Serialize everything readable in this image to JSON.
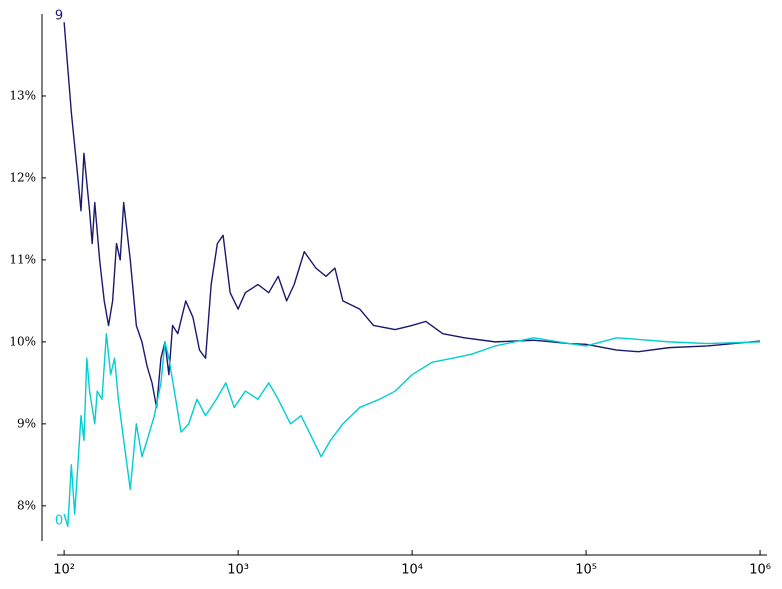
{
  "chart_data": {
    "type": "line",
    "xscale": "log",
    "xlim": [
      91,
      1096000
    ],
    "ylim": [
      7.4,
      14.0
    ],
    "xticks": [
      {
        "value": 100,
        "label": "10²"
      },
      {
        "value": 1000,
        "label": "10³"
      },
      {
        "value": 10000,
        "label": "10⁴"
      },
      {
        "value": 100000,
        "label": "10⁵"
      },
      {
        "value": 1000000,
        "label": "10⁶"
      }
    ],
    "yticks": [
      {
        "value": 8,
        "label": "8%"
      },
      {
        "value": 9,
        "label": "9%"
      },
      {
        "value": 10,
        "label": "10%"
      },
      {
        "value": 11,
        "label": "11%"
      },
      {
        "value": 12,
        "label": "12%"
      },
      {
        "value": 13,
        "label": "13%"
      }
    ],
    "grid": false,
    "series": [
      {
        "name": "9",
        "color": "#191970",
        "x": [
          100,
          110,
          120,
          125,
          130,
          140,
          145,
          150,
          160,
          170,
          180,
          190,
          200,
          210,
          220,
          240,
          260,
          280,
          300,
          320,
          340,
          360,
          380,
          400,
          420,
          450,
          500,
          550,
          600,
          650,
          700,
          760,
          820,
          900,
          1000,
          1100,
          1300,
          1500,
          1700,
          1900,
          2100,
          2400,
          2800,
          3200,
          3600,
          4000,
          5000,
          6000,
          8000,
          10000,
          12000,
          15000,
          20000,
          30000,
          50000,
          80000,
          100000,
          150000,
          200000,
          300000,
          500000,
          1000000
        ],
        "values": [
          13.9,
          12.8,
          12.0,
          11.6,
          12.3,
          11.6,
          11.2,
          11.7,
          11.0,
          10.5,
          10.2,
          10.5,
          11.2,
          11.0,
          11.7,
          11.0,
          10.2,
          10.0,
          9.7,
          9.5,
          9.2,
          9.8,
          10.0,
          9.6,
          10.2,
          10.1,
          10.5,
          10.3,
          9.9,
          9.8,
          10.7,
          11.2,
          11.3,
          10.6,
          10.4,
          10.6,
          10.7,
          10.6,
          10.8,
          10.5,
          10.7,
          11.1,
          10.9,
          10.8,
          10.9,
          10.5,
          10.4,
          10.2,
          10.15,
          10.2,
          10.25,
          10.1,
          10.05,
          10.0,
          10.02,
          9.98,
          9.97,
          9.9,
          9.88,
          9.93,
          9.95,
          10.01
        ]
      },
      {
        "name": "0",
        "color": "#00ced1",
        "x": [
          100,
          105,
          110,
          115,
          120,
          125,
          130,
          135,
          140,
          150,
          155,
          165,
          175,
          185,
          195,
          205,
          220,
          240,
          260,
          280,
          300,
          330,
          360,
          380,
          400,
          430,
          470,
          520,
          580,
          650,
          750,
          850,
          950,
          1100,
          1300,
          1500,
          1700,
          2000,
          2300,
          2700,
          3000,
          3400,
          4000,
          5000,
          6500,
          8000,
          10000,
          13000,
          17000,
          22000,
          30000,
          50000,
          80000,
          100000,
          150000,
          200000,
          300000,
          500000,
          1000000
        ],
        "values": [
          7.9,
          7.75,
          8.5,
          7.9,
          8.5,
          9.1,
          8.8,
          9.8,
          9.4,
          9.0,
          9.4,
          9.3,
          10.1,
          9.6,
          9.8,
          9.3,
          8.8,
          8.2,
          9.0,
          8.6,
          8.8,
          9.1,
          9.5,
          10.0,
          9.8,
          9.4,
          8.9,
          9.0,
          9.3,
          9.1,
          9.3,
          9.5,
          9.2,
          9.4,
          9.3,
          9.5,
          9.3,
          9.0,
          9.1,
          8.8,
          8.6,
          8.8,
          9.0,
          9.2,
          9.3,
          9.4,
          9.6,
          9.75,
          9.8,
          9.85,
          9.95,
          10.05,
          9.98,
          9.95,
          10.05,
          10.03,
          10.0,
          9.98,
          10.0
        ]
      }
    ]
  }
}
